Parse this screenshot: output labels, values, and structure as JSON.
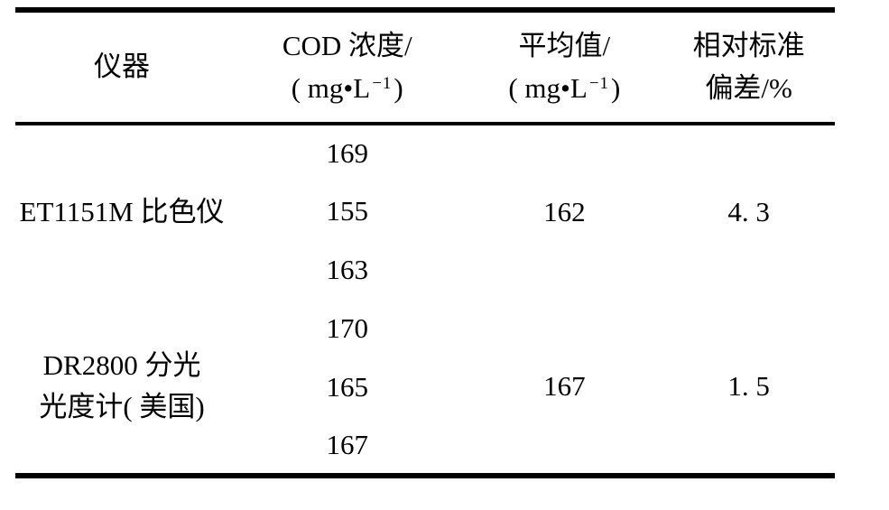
{
  "table": {
    "header": {
      "instrument": "仪器",
      "cod": {
        "line1": "COD 浓度/",
        "unit_open": "( mg•L",
        "unit_sup": "−1",
        "unit_close": ")"
      },
      "avg": {
        "line1": "平均值/",
        "unit_open": "( mg•L",
        "unit_sup": "−1",
        "unit_close": ")"
      },
      "rsd": {
        "line1": "相对标准",
        "line2": "偏差/%"
      }
    },
    "groups": [
      {
        "instrument": "ET1151M 比色仪",
        "cod_values": [
          "169",
          "155",
          "163"
        ],
        "avg": "162",
        "rsd": "4. 3"
      },
      {
        "instrument": "DR2800 分光\n光度计( 美国)",
        "cod_values": [
          "170",
          "165",
          "167"
        ],
        "avg": "167",
        "rsd": "1. 5"
      }
    ],
    "colors": {
      "text": "#000000",
      "background": "#ffffff",
      "rule": "#000000"
    }
  },
  "chart_data": {
    "type": "table",
    "columns": [
      "仪器",
      "COD 浓度/(mg•L−1)",
      "平均值/(mg•L−1)",
      "相对标准偏差/%"
    ],
    "rows": [
      [
        "ET1151M 比色仪",
        169,
        162,
        4.3
      ],
      [
        "ET1151M 比色仪",
        155,
        162,
        4.3
      ],
      [
        "ET1151M 比色仪",
        163,
        162,
        4.3
      ],
      [
        "DR2800 分光光度计(美国)",
        170,
        167,
        1.5
      ],
      [
        "DR2800 分光光度计(美国)",
        165,
        167,
        1.5
      ],
      [
        "DR2800 分光光度计(美国)",
        167,
        167,
        1.5
      ]
    ]
  }
}
